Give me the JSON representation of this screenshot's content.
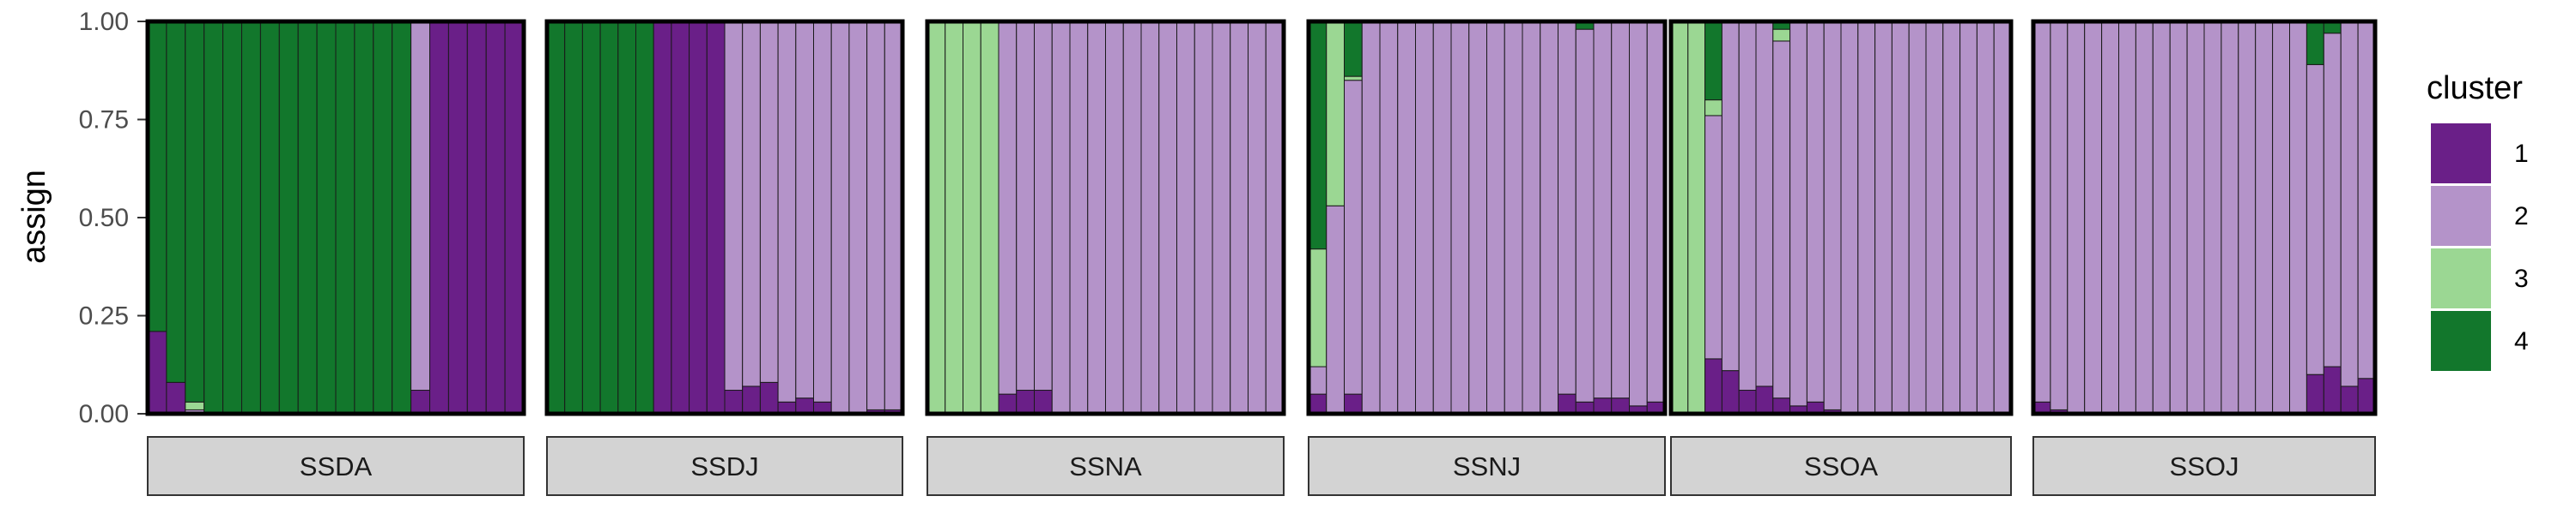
{
  "chart_data": {
    "type": "bar",
    "stacked": true,
    "title": "",
    "xlabel": "",
    "ylabel": "assign",
    "ylim": [
      0,
      1
    ],
    "yticks": [
      "0.00",
      "0.25",
      "0.50",
      "0.75",
      "1.00"
    ],
    "grid": false,
    "legend": {
      "title": "cluster",
      "position": "right",
      "entries": [
        {
          "label": "1",
          "color": "#6a1f88"
        },
        {
          "label": "2",
          "color": "#b493c9"
        },
        {
          "label": "3",
          "color": "#9bd793"
        },
        {
          "label": "4",
          "color": "#12772c"
        }
      ]
    },
    "cluster_order_bottom_to_top": [
      "1",
      "2",
      "3",
      "4"
    ],
    "panels": [
      {
        "name": "SSDA",
        "individuals": [
          [
            0.21,
            0.0,
            0.0,
            0.79
          ],
          [
            0.08,
            0.0,
            0.0,
            0.92
          ],
          [
            0.0,
            0.01,
            0.02,
            0.97
          ],
          [
            0.0,
            0.0,
            0.0,
            1.0
          ],
          [
            0.0,
            0.0,
            0.0,
            1.0
          ],
          [
            0.0,
            0.0,
            0.0,
            1.0
          ],
          [
            0.0,
            0.0,
            0.0,
            1.0
          ],
          [
            0.0,
            0.0,
            0.0,
            1.0
          ],
          [
            0.0,
            0.0,
            0.0,
            1.0
          ],
          [
            0.0,
            0.0,
            0.0,
            1.0
          ],
          [
            0.0,
            0.0,
            0.0,
            1.0
          ],
          [
            0.0,
            0.0,
            0.0,
            1.0
          ],
          [
            0.0,
            0.0,
            0.0,
            1.0
          ],
          [
            0.0,
            0.0,
            0.0,
            1.0
          ],
          [
            0.06,
            0.94,
            0.0,
            0.0
          ],
          [
            1.0,
            0.0,
            0.0,
            0.0
          ],
          [
            1.0,
            0.0,
            0.0,
            0.0
          ],
          [
            1.0,
            0.0,
            0.0,
            0.0
          ],
          [
            1.0,
            0.0,
            0.0,
            0.0
          ],
          [
            1.0,
            0.0,
            0.0,
            0.0
          ]
        ]
      },
      {
        "name": "SSDJ",
        "individuals": [
          [
            0.0,
            0.0,
            0.0,
            1.0
          ],
          [
            0.0,
            0.0,
            0.0,
            1.0
          ],
          [
            0.0,
            0.0,
            0.0,
            1.0
          ],
          [
            0.0,
            0.0,
            0.0,
            1.0
          ],
          [
            0.0,
            0.0,
            0.0,
            1.0
          ],
          [
            0.0,
            0.0,
            0.0,
            1.0
          ],
          [
            1.0,
            0.0,
            0.0,
            0.0
          ],
          [
            1.0,
            0.0,
            0.0,
            0.0
          ],
          [
            1.0,
            0.0,
            0.0,
            0.0
          ],
          [
            1.0,
            0.0,
            0.0,
            0.0
          ],
          [
            0.06,
            0.94,
            0.0,
            0.0
          ],
          [
            0.07,
            0.93,
            0.0,
            0.0
          ],
          [
            0.08,
            0.92,
            0.0,
            0.0
          ],
          [
            0.03,
            0.97,
            0.0,
            0.0
          ],
          [
            0.04,
            0.96,
            0.0,
            0.0
          ],
          [
            0.03,
            0.97,
            0.0,
            0.0
          ],
          [
            0.0,
            1.0,
            0.0,
            0.0
          ],
          [
            0.0,
            1.0,
            0.0,
            0.0
          ],
          [
            0.01,
            0.99,
            0.0,
            0.0
          ],
          [
            0.01,
            0.99,
            0.0,
            0.0
          ]
        ]
      },
      {
        "name": "SSNA",
        "individuals": [
          [
            0.0,
            0.0,
            1.0,
            0.0
          ],
          [
            0.0,
            0.0,
            1.0,
            0.0
          ],
          [
            0.0,
            0.0,
            1.0,
            0.0
          ],
          [
            0.0,
            0.0,
            1.0,
            0.0
          ],
          [
            0.05,
            0.95,
            0.0,
            0.0
          ],
          [
            0.06,
            0.94,
            0.0,
            0.0
          ],
          [
            0.06,
            0.94,
            0.0,
            0.0
          ],
          [
            0.0,
            1.0,
            0.0,
            0.0
          ],
          [
            0.0,
            1.0,
            0.0,
            0.0
          ],
          [
            0.0,
            1.0,
            0.0,
            0.0
          ],
          [
            0.0,
            1.0,
            0.0,
            0.0
          ],
          [
            0.0,
            1.0,
            0.0,
            0.0
          ],
          [
            0.0,
            1.0,
            0.0,
            0.0
          ],
          [
            0.0,
            1.0,
            0.0,
            0.0
          ],
          [
            0.0,
            1.0,
            0.0,
            0.0
          ],
          [
            0.0,
            1.0,
            0.0,
            0.0
          ],
          [
            0.0,
            1.0,
            0.0,
            0.0
          ],
          [
            0.0,
            1.0,
            0.0,
            0.0
          ],
          [
            0.0,
            1.0,
            0.0,
            0.0
          ],
          [
            0.0,
            1.0,
            0.0,
            0.0
          ]
        ]
      },
      {
        "name": "SSNJ",
        "individuals": [
          [
            0.05,
            0.07,
            0.3,
            0.58
          ],
          [
            0.0,
            0.53,
            0.47,
            0.0
          ],
          [
            0.05,
            0.8,
            0.01,
            0.14
          ],
          [
            0.0,
            1.0,
            0.0,
            0.0
          ],
          [
            0.0,
            1.0,
            0.0,
            0.0
          ],
          [
            0.0,
            1.0,
            0.0,
            0.0
          ],
          [
            0.0,
            1.0,
            0.0,
            0.0
          ],
          [
            0.0,
            1.0,
            0.0,
            0.0
          ],
          [
            0.0,
            1.0,
            0.0,
            0.0
          ],
          [
            0.0,
            1.0,
            0.0,
            0.0
          ],
          [
            0.0,
            1.0,
            0.0,
            0.0
          ],
          [
            0.0,
            1.0,
            0.0,
            0.0
          ],
          [
            0.0,
            1.0,
            0.0,
            0.0
          ],
          [
            0.0,
            1.0,
            0.0,
            0.0
          ],
          [
            0.05,
            0.95,
            0.0,
            0.0
          ],
          [
            0.03,
            0.95,
            0.0,
            0.02
          ],
          [
            0.04,
            0.96,
            0.0,
            0.0
          ],
          [
            0.04,
            0.96,
            0.0,
            0.0
          ],
          [
            0.02,
            0.98,
            0.0,
            0.0
          ],
          [
            0.03,
            0.97,
            0.0,
            0.0
          ]
        ]
      },
      {
        "name": "SSOA",
        "individuals": [
          [
            0.0,
            0.0,
            1.0,
            0.0
          ],
          [
            0.0,
            0.0,
            1.0,
            0.0
          ],
          [
            0.14,
            0.62,
            0.04,
            0.2
          ],
          [
            0.11,
            0.89,
            0.0,
            0.0
          ],
          [
            0.06,
            0.94,
            0.0,
            0.0
          ],
          [
            0.07,
            0.93,
            0.0,
            0.0
          ],
          [
            0.04,
            0.91,
            0.03,
            0.02
          ],
          [
            0.02,
            0.98,
            0.0,
            0.0
          ],
          [
            0.03,
            0.97,
            0.0,
            0.0
          ],
          [
            0.01,
            0.99,
            0.0,
            0.0
          ],
          [
            0.0,
            1.0,
            0.0,
            0.0
          ],
          [
            0.0,
            1.0,
            0.0,
            0.0
          ],
          [
            0.0,
            1.0,
            0.0,
            0.0
          ],
          [
            0.0,
            1.0,
            0.0,
            0.0
          ],
          [
            0.0,
            1.0,
            0.0,
            0.0
          ],
          [
            0.0,
            1.0,
            0.0,
            0.0
          ],
          [
            0.0,
            1.0,
            0.0,
            0.0
          ],
          [
            0.0,
            1.0,
            0.0,
            0.0
          ],
          [
            0.0,
            1.0,
            0.0,
            0.0
          ],
          [
            0.0,
            1.0,
            0.0,
            0.0
          ]
        ]
      },
      {
        "name": "SSOJ",
        "individuals": [
          [
            0.03,
            0.97,
            0.0,
            0.0
          ],
          [
            0.01,
            0.99,
            0.0,
            0.0
          ],
          [
            0.0,
            1.0,
            0.0,
            0.0
          ],
          [
            0.0,
            1.0,
            0.0,
            0.0
          ],
          [
            0.0,
            1.0,
            0.0,
            0.0
          ],
          [
            0.0,
            1.0,
            0.0,
            0.0
          ],
          [
            0.0,
            1.0,
            0.0,
            0.0
          ],
          [
            0.0,
            1.0,
            0.0,
            0.0
          ],
          [
            0.0,
            1.0,
            0.0,
            0.0
          ],
          [
            0.0,
            1.0,
            0.0,
            0.0
          ],
          [
            0.0,
            1.0,
            0.0,
            0.0
          ],
          [
            0.0,
            1.0,
            0.0,
            0.0
          ],
          [
            0.0,
            1.0,
            0.0,
            0.0
          ],
          [
            0.0,
            1.0,
            0.0,
            0.0
          ],
          [
            0.0,
            1.0,
            0.0,
            0.0
          ],
          [
            0.0,
            1.0,
            0.0,
            0.0
          ],
          [
            0.1,
            0.79,
            0.0,
            0.11
          ],
          [
            0.12,
            0.85,
            0.0,
            0.03
          ],
          [
            0.07,
            0.93,
            0.0,
            0.0
          ],
          [
            0.09,
            0.91,
            0.0,
            0.0
          ]
        ]
      }
    ]
  }
}
